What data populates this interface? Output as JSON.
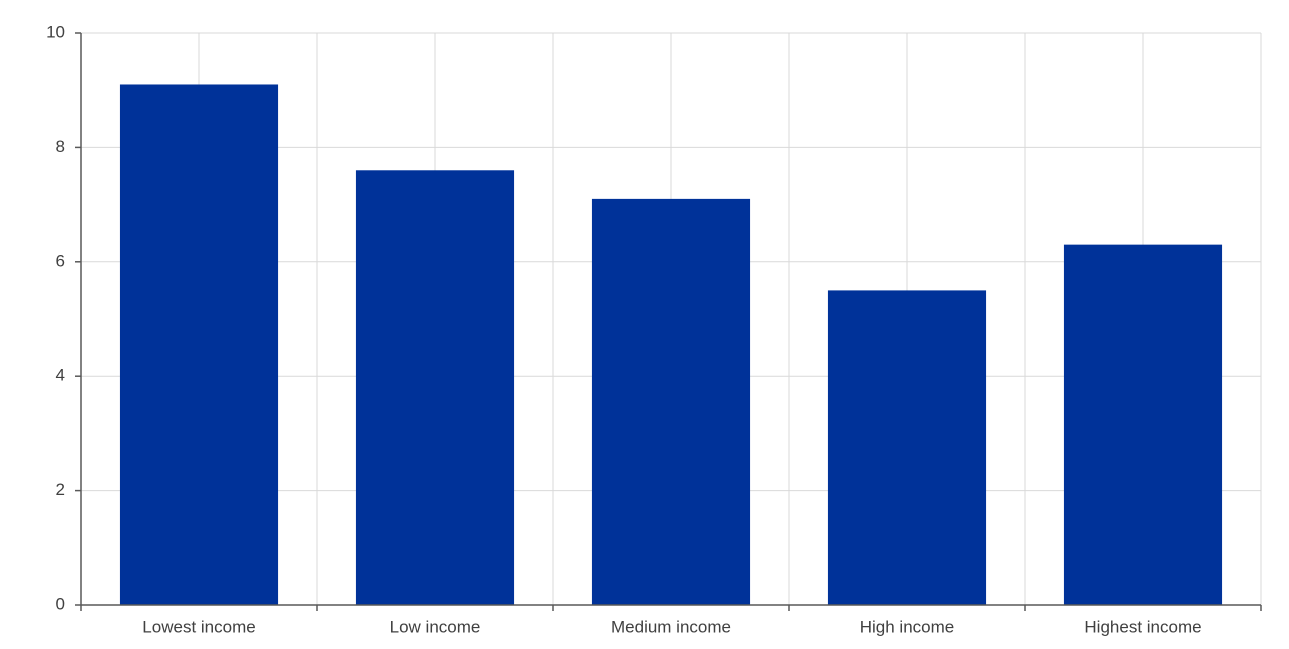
{
  "chart_data": {
    "type": "bar",
    "categories": [
      "Lowest income",
      "Low income",
      "Medium income",
      "High income",
      "Highest income"
    ],
    "values": [
      9.1,
      7.6,
      7.1,
      5.5,
      6.3
    ],
    "color": "#003299",
    "ylim": [
      0,
      10
    ],
    "yticks": [
      0,
      2,
      4,
      6,
      8,
      10
    ],
    "grid": true
  }
}
